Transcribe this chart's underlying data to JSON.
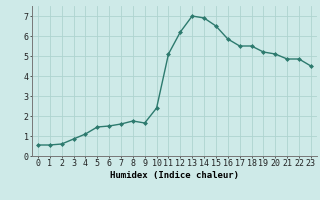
{
  "x": [
    0,
    1,
    2,
    3,
    4,
    5,
    6,
    7,
    8,
    9,
    10,
    11,
    12,
    13,
    14,
    15,
    16,
    17,
    18,
    19,
    20,
    21,
    22,
    23
  ],
  "y": [
    0.55,
    0.55,
    0.6,
    0.85,
    1.1,
    1.45,
    1.5,
    1.6,
    1.75,
    1.65,
    2.4,
    5.1,
    6.2,
    7.0,
    6.9,
    6.5,
    5.85,
    5.5,
    5.5,
    5.2,
    5.1,
    4.85,
    4.85,
    4.5
  ],
  "line_color": "#2d7a6e",
  "marker": "D",
  "marker_size": 2.0,
  "bg_color": "#ceeae8",
  "grid_color": "#aed4d0",
  "xlabel": "Humidex (Indice chaleur)",
  "xlim": [
    -0.5,
    23.5
  ],
  "ylim": [
    0,
    7.5
  ],
  "yticks": [
    0,
    1,
    2,
    3,
    4,
    5,
    6,
    7
  ],
  "xticks": [
    0,
    1,
    2,
    3,
    4,
    5,
    6,
    7,
    8,
    9,
    10,
    11,
    12,
    13,
    14,
    15,
    16,
    17,
    18,
    19,
    20,
    21,
    22,
    23
  ],
  "xtick_labels": [
    "0",
    "1",
    "2",
    "3",
    "4",
    "5",
    "6",
    "7",
    "8",
    "9",
    "10",
    "11",
    "12",
    "13",
    "14",
    "15",
    "16",
    "17",
    "18",
    "19",
    "20",
    "21",
    "22",
    "23"
  ],
  "line_width": 1.0,
  "tick_fontsize": 6.0,
  "xlabel_fontsize": 6.5
}
